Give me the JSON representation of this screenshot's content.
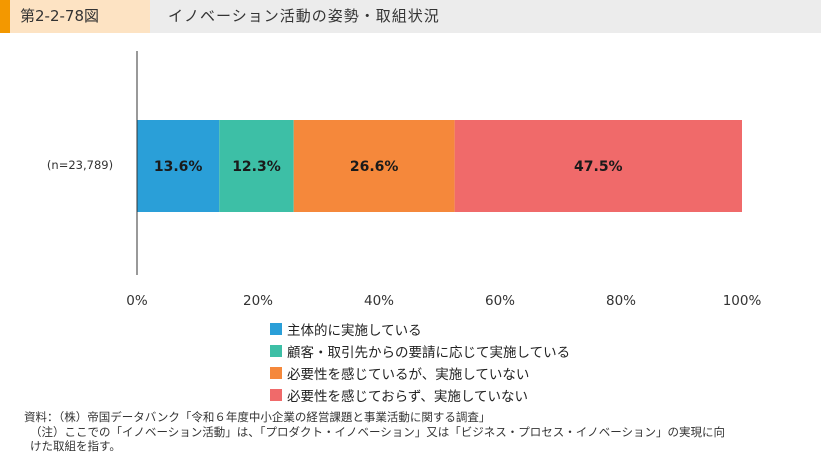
{
  "header": {
    "figure_number": "第2-2-78図",
    "title": "イノベーション活動の姿勢・取組状況"
  },
  "chart_data": {
    "type": "bar",
    "orientation": "horizontal",
    "stacked": true,
    "categories": [
      "(n=23,789)"
    ],
    "series": [
      {
        "name": "主体的に実施している",
        "values": [
          13.6
        ],
        "color": "#2a9fd8"
      },
      {
        "name": "顧客・取引先からの要請に応じて実施している",
        "values": [
          12.3
        ],
        "color": "#3dbfa6"
      },
      {
        "name": "必要性を感じているが、実施していない",
        "values": [
          26.6
        ],
        "color": "#f5883b"
      },
      {
        "name": "必要性を感じておらず、実施していない",
        "values": [
          47.5
        ],
        "color": "#f06a6a"
      }
    ],
    "data_labels": [
      "13.6%",
      "12.3%",
      "26.6%",
      "47.5%"
    ],
    "xlim": [
      0,
      100
    ],
    "x_ticks": [
      "0%",
      "20%",
      "40%",
      "60%",
      "80%",
      "100%"
    ],
    "grid": false,
    "legend_position": "bottom"
  },
  "notes": {
    "source": "資料：（株）帝国データバンク「令和６年度中小企業の経営課題と事業活動に関する調査」",
    "note_line1": "（注）ここでの「イノベーション活動」は、「プロダクト・イノベーション」又は「ビジネス・プロセス・イノベーション」の実現に向",
    "note_line2": "けた取組を指す。"
  }
}
